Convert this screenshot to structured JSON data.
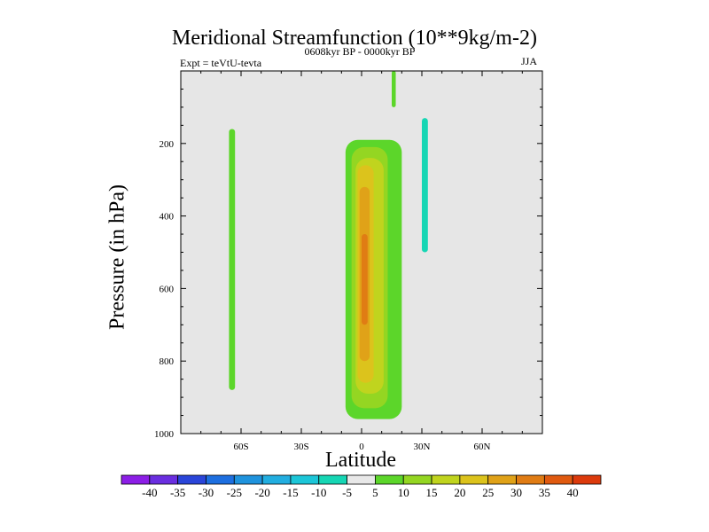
{
  "chart_data": {
    "type": "contour",
    "title": "Meridional Streamfunction (10**9kg/m-2)",
    "subtitle_left": "Expt = teVtU-tevta",
    "subtitle_center": "0608kyr BP - 0000kyr BP",
    "subtitle_right": "JJA",
    "xlabel": "Latitude",
    "ylabel": "Pressure (in hPa)",
    "x_ticks": [
      "60S",
      "30S",
      "0",
      "30N",
      "60N"
    ],
    "x_tick_values": [
      -60,
      -30,
      0,
      30,
      60
    ],
    "xlim": [
      -90,
      90
    ],
    "y_ticks": [
      "200",
      "400",
      "600",
      "800",
      "1000"
    ],
    "y_tick_values": [
      200,
      400,
      600,
      800,
      1000
    ],
    "ylim": [
      0,
      1000
    ],
    "y_reversed": true,
    "background_color": "#e6e6e6",
    "colorbar": {
      "labels": [
        "-40",
        "-35",
        "-30",
        "-25",
        "-20",
        "-15",
        "-10",
        "-5",
        "5",
        "10",
        "15",
        "20",
        "25",
        "30",
        "35",
        "40"
      ],
      "colors": [
        "#8c1ee6",
        "#6a2ee0",
        "#2a45d9",
        "#1d6fe0",
        "#1f93dd",
        "#22aee0",
        "#1cc6d8",
        "#16d6b4",
        "#e8e8e8",
        "#5cd62a",
        "#94d622",
        "#c0d41e",
        "#dcc31c",
        "#e0a218",
        "#e07c14",
        "#e05a10",
        "#dc3a0c"
      ]
    },
    "regions": [
      {
        "level": "5 to 10",
        "lat": [
          -66,
          -63
        ],
        "pressure": [
          160,
          880
        ]
      },
      {
        "level": "-10 to -5",
        "lat": [
          30,
          33
        ],
        "pressure": [
          130,
          500
        ]
      },
      {
        "level": "5 to 10",
        "lat": [
          15,
          17
        ],
        "pressure": [
          0,
          100
        ]
      },
      {
        "level": "5 to 10",
        "lat": [
          -8,
          20
        ],
        "pressure": [
          190,
          960
        ]
      },
      {
        "level": "10 to 15",
        "lat": [
          -5,
          13
        ],
        "pressure": [
          210,
          930
        ]
      },
      {
        "level": "15 to 20",
        "lat": [
          -3,
          11
        ],
        "pressure": [
          240,
          890
        ]
      },
      {
        "level": "20 to 25",
        "lat": [
          -2,
          6
        ],
        "pressure": [
          260,
          860
        ]
      },
      {
        "level": "25 to 30",
        "lat": [
          -1,
          4
        ],
        "pressure": [
          320,
          800
        ]
      },
      {
        "level": "30 to 35",
        "lat": [
          0,
          3
        ],
        "pressure": [
          450,
          700
        ]
      }
    ]
  }
}
